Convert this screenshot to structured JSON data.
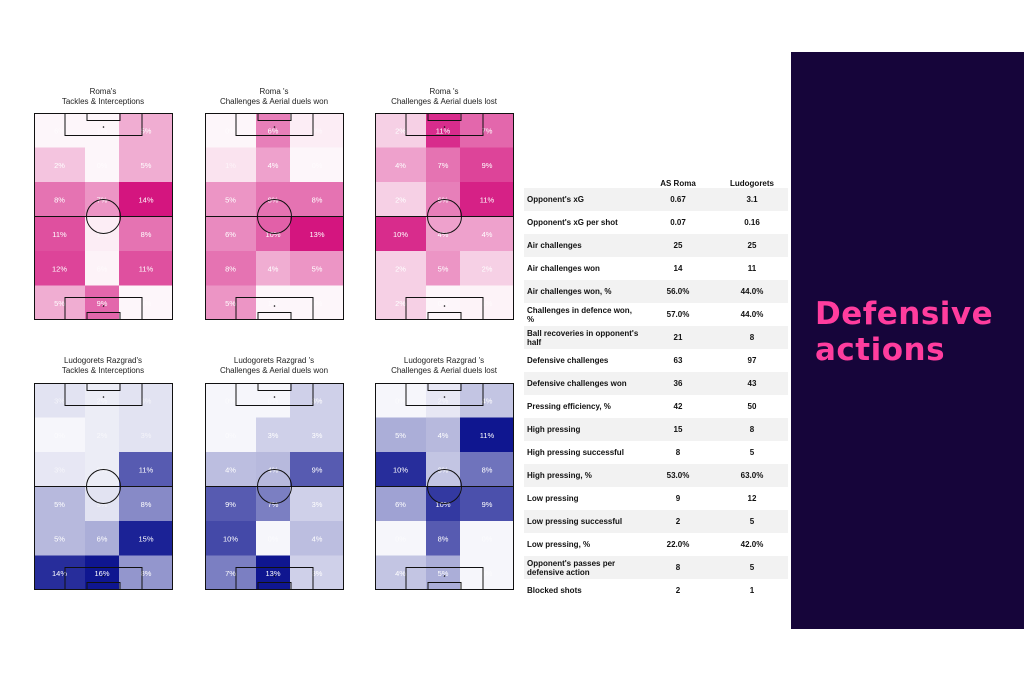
{
  "colors": {
    "roma": "#d4157f",
    "ludo": "#0f1690",
    "panel": "#16053a",
    "accent": "#ff3d9e"
  },
  "panel": {
    "title_line1": "Defensive",
    "title_line2": "actions"
  },
  "chart_data": [
    {
      "type": "heatmap",
      "title": "Roma's\nTackles & Interceptions",
      "team": "roma",
      "cells": [
        {
          "v": 6,
          "a": 0.0
        },
        {
          "v": 1,
          "a": 0.0
        },
        {
          "v": 5,
          "a": 0.35
        },
        {
          "v": 2,
          "a": 0.25
        },
        {
          "v": 0,
          "a": 0.0
        },
        {
          "v": 5,
          "a": 0.35
        },
        {
          "v": 8,
          "a": 0.6
        },
        {
          "v": 7,
          "a": 0.45
        },
        {
          "v": 14,
          "a": 1.0
        },
        {
          "v": 11,
          "a": 0.75
        },
        {
          "v": 1,
          "a": 0.08
        },
        {
          "v": 8,
          "a": 0.6
        },
        {
          "v": 12,
          "a": 0.8
        },
        {
          "v": 6,
          "a": 0.05
        },
        {
          "v": 11,
          "a": 0.75
        },
        {
          "v": 5,
          "a": 0.35
        },
        {
          "v": 9,
          "a": 0.65
        },
        {
          "v": 4,
          "a": 0.0
        }
      ]
    },
    {
      "type": "heatmap",
      "title": "Roma 's\nChallenges & Aerial duels won",
      "team": "roma",
      "cells": [
        {
          "v": 0,
          "a": 0.0
        },
        {
          "v": 6,
          "a": 0.55
        },
        {
          "v": 0,
          "a": 0.08
        },
        {
          "v": 1,
          "a": 0.12
        },
        {
          "v": 4,
          "a": 0.4
        },
        {
          "v": 0,
          "a": 0.0
        },
        {
          "v": 5,
          "a": 0.45
        },
        {
          "v": 8,
          "a": 0.6
        },
        {
          "v": 8,
          "a": 0.6
        },
        {
          "v": 6,
          "a": 0.5
        },
        {
          "v": 10,
          "a": 0.68
        },
        {
          "v": 13,
          "a": 1.0
        },
        {
          "v": 8,
          "a": 0.6
        },
        {
          "v": 4,
          "a": 0.35
        },
        {
          "v": 5,
          "a": 0.45
        },
        {
          "v": 5,
          "a": 0.45
        },
        {
          "v": 1,
          "a": 0.0
        },
        {
          "v": 0,
          "a": 0.0
        }
      ],
      "merged": [
        {
          "row": 1,
          "col": 1,
          "rows": 2,
          "v": 8
        },
        {
          "row": 3,
          "col": 1,
          "rows": 3,
          "v": 4
        },
        {
          "row": 1,
          "col": 2,
          "v": 8
        }
      ]
    },
    {
      "type": "heatmap",
      "title": "Roma 's\nChallenges & Aerial duels lost",
      "team": "roma",
      "cells": [
        {
          "v": 2,
          "a": 0.2
        },
        {
          "v": 11,
          "a": 0.9
        },
        {
          "v": 7,
          "a": 0.65
        },
        {
          "v": 4,
          "a": 0.4
        },
        {
          "v": 7,
          "a": 0.6
        },
        {
          "v": 9,
          "a": 0.8
        },
        {
          "v": 2,
          "a": 0.2
        },
        {
          "v": 6,
          "a": 0.55
        },
        {
          "v": 11,
          "a": 0.95
        },
        {
          "v": 10,
          "a": 0.9
        },
        {
          "v": 4,
          "a": 0.4
        },
        {
          "v": 4,
          "a": 0.4
        },
        {
          "v": 2,
          "a": 0.2
        },
        {
          "v": 5,
          "a": 0.45
        },
        {
          "v": 2,
          "a": 0.2
        },
        {
          "v": 2,
          "a": 0.2
        },
        {
          "v": 0,
          "a": 0.0
        },
        {
          "v": 1,
          "a": 0.05
        }
      ]
    },
    {
      "type": "heatmap",
      "title": "Ludogorets Razgrad's\nTackles & Interceptions",
      "team": "ludo",
      "cells": [
        {
          "v": 3,
          "a": 0.12
        },
        {
          "v": 2,
          "a": 0.08
        },
        {
          "v": 3,
          "a": 0.12
        },
        {
          "v": 0,
          "a": 0.0
        },
        {
          "v": 2,
          "a": 0.08
        },
        {
          "v": 3,
          "a": 0.12
        },
        {
          "v": 3,
          "a": 0.1
        },
        {
          "v": 2,
          "a": 0.08
        },
        {
          "v": 11,
          "a": 0.7
        },
        {
          "v": 5,
          "a": 0.3
        },
        {
          "v": 3,
          "a": 0.12
        },
        {
          "v": 8,
          "a": 0.5
        },
        {
          "v": 5,
          "a": 0.3
        },
        {
          "v": 6,
          "a": 0.35
        },
        {
          "v": 15,
          "a": 0.95
        },
        {
          "v": 14,
          "a": 0.9
        },
        {
          "v": 16,
          "a": 1.0
        },
        {
          "v": 8,
          "a": 0.45
        }
      ]
    },
    {
      "type": "heatmap",
      "title": "Ludogorets Razgrad 's\nChallenges & Aerial duels won",
      "team": "ludo",
      "cells": [
        {
          "v": 0,
          "a": 0.0
        },
        {
          "v": 0,
          "a": 0.0
        },
        {
          "v": 3,
          "a": 0.2
        },
        {
          "v": 0,
          "a": 0.0
        },
        {
          "v": 3,
          "a": 0.2
        },
        {
          "v": 3,
          "a": 0.2
        },
        {
          "v": 4,
          "a": 0.28
        },
        {
          "v": 4,
          "a": 0.3
        },
        {
          "v": 9,
          "a": 0.7
        },
        {
          "v": 9,
          "a": 0.7
        },
        {
          "v": 7,
          "a": 0.55
        },
        {
          "v": 3,
          "a": 0.2
        },
        {
          "v": 10,
          "a": 0.78
        },
        {
          "v": 0,
          "a": 0.0
        },
        {
          "v": 4,
          "a": 0.28
        },
        {
          "v": 7,
          "a": 0.55
        },
        {
          "v": 13,
          "a": 1.0
        },
        {
          "v": 3,
          "a": 0.2
        }
      ]
    },
    {
      "type": "heatmap",
      "title": "Ludogorets Razgrad 's\nChallenges & Aerial duels lost",
      "team": "ludo",
      "cells": [
        {
          "v": 0,
          "a": 0.0
        },
        {
          "v": 2,
          "a": 0.1
        },
        {
          "v": 4,
          "a": 0.25
        },
        {
          "v": 5,
          "a": 0.35
        },
        {
          "v": 4,
          "a": 0.3
        },
        {
          "v": 11,
          "a": 1.0
        },
        {
          "v": 10,
          "a": 0.9
        },
        {
          "v": 3,
          "a": 0.25
        },
        {
          "v": 8,
          "a": 0.6
        },
        {
          "v": 6,
          "a": 0.4
        },
        {
          "v": 10,
          "a": 0.85
        },
        {
          "v": 9,
          "a": 0.75
        },
        {
          "v": 0,
          "a": 0.0
        },
        {
          "v": 8,
          "a": 0.7
        },
        {
          "v": 0,
          "a": 0.0
        },
        {
          "v": 4,
          "a": 0.25
        },
        {
          "v": 5,
          "a": 0.35
        },
        {
          "v": 0,
          "a": 0.0
        }
      ]
    },
    {
      "type": "table",
      "columns": [
        "",
        "AS Roma",
        "Ludogorets"
      ],
      "rows": [
        [
          "Opponent's xG",
          "0.67",
          "3.1"
        ],
        [
          "Opponent's xG per shot",
          "0.07",
          "0.16"
        ],
        [
          "Air challenges",
          "25",
          "25"
        ],
        [
          "Air challenges won",
          "14",
          "11"
        ],
        [
          "Air challenges won, %",
          "56.0%",
          "44.0%"
        ],
        [
          "Challenges in defence won, %",
          "57.0%",
          "44.0%"
        ],
        [
          "Ball recoveries in opponent's half",
          "21",
          "8"
        ],
        [
          "Defensive challenges",
          "63",
          "97"
        ],
        [
          "Defensive challenges won",
          "36",
          "43"
        ],
        [
          "Pressing efficiency, %",
          "42",
          "50"
        ],
        [
          "High pressing",
          "15",
          "8"
        ],
        [
          "High pressing successful",
          "8",
          "5"
        ],
        [
          "High pressing, %",
          "53.0%",
          "63.0%"
        ],
        [
          "Low pressing",
          "9",
          "12"
        ],
        [
          "Low pressing successful",
          "2",
          "5"
        ],
        [
          "Low pressing, %",
          "22.0%",
          "42.0%"
        ],
        [
          "Opponent's passes per defensive action",
          "8",
          "5"
        ],
        [
          "Blocked shots",
          "2",
          "1"
        ]
      ]
    }
  ]
}
